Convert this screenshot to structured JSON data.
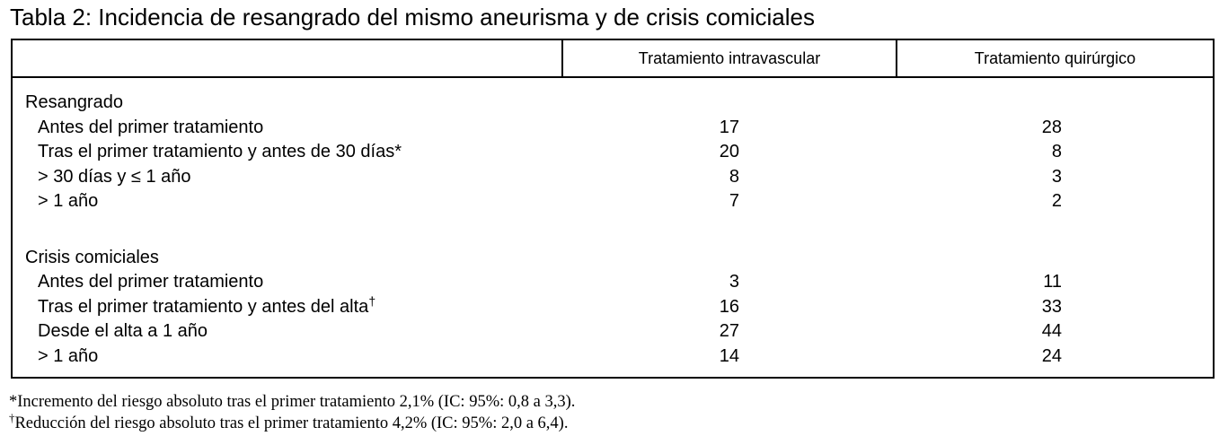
{
  "title": "Tabla 2: Incidencia de resangrado del mismo aneurisma y de crisis comiciales",
  "table": {
    "col_headers": [
      "Tratamiento intravascular",
      "Tratamiento quirúrgico"
    ],
    "sections": [
      {
        "heading": "Resangrado",
        "rows": [
          {
            "label": "Antes del primer tratamiento",
            "sup": "",
            "intravascular": "17",
            "quirurgico": "28"
          },
          {
            "label": "Tras el primer tratamiento y antes de 30 días*",
            "sup": "",
            "intravascular": "20",
            "quirurgico": "8"
          },
          {
            "label": "> 30 días y ≤ 1 año",
            "sup": "",
            "intravascular": "8",
            "quirurgico": "3"
          },
          {
            "label": "> 1 año",
            "sup": "",
            "intravascular": "7",
            "quirurgico": "2"
          }
        ]
      },
      {
        "heading": "Crisis comiciales",
        "rows": [
          {
            "label": "Antes del primer tratamiento",
            "sup": "",
            "intravascular": "3",
            "quirurgico": "11"
          },
          {
            "label": "Tras el primer tratamiento y antes del alta",
            "sup": "†",
            "intravascular": "16",
            "quirurgico": "33"
          },
          {
            "label": "Desde el alta a 1 año",
            "sup": "",
            "intravascular": "27",
            "quirurgico": "44"
          },
          {
            "label": "> 1 año",
            "sup": "",
            "intravascular": "14",
            "quirurgico": "24"
          }
        ]
      }
    ]
  },
  "footnotes": [
    {
      "marker": "*",
      "text": "Incremento del riesgo absoluto tras el primer tratamiento 2,1% (IC: 95%: 0,8 a 3,3)."
    },
    {
      "marker": "†",
      "text": "Reducción del riesgo absoluto tras el primer tratamiento 4,2% (IC: 95%: 2,0 a 6,4)."
    }
  ],
  "colors": {
    "background": "#ffffff",
    "text": "#000000",
    "border": "#000000"
  }
}
